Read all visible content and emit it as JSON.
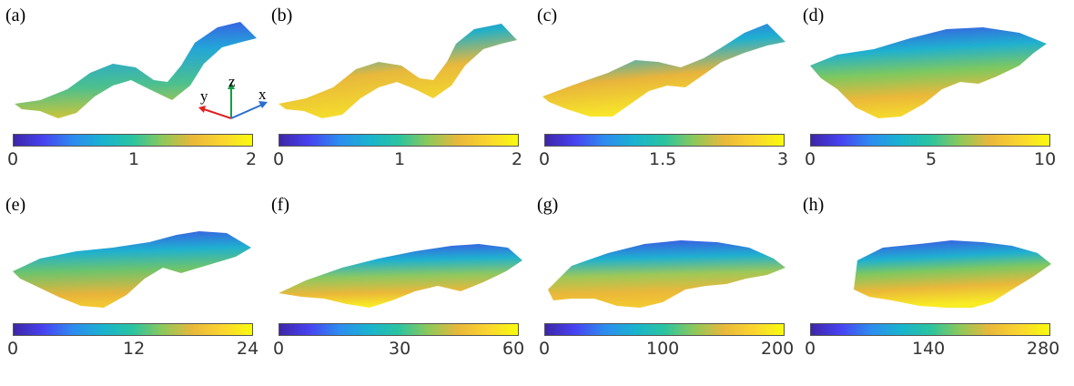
{
  "panels": [
    {
      "label": "(a)",
      "ticks": [
        "0",
        "1",
        "2"
      ]
    },
    {
      "label": "(b)",
      "ticks": [
        "0",
        "1",
        "2"
      ]
    },
    {
      "label": "(c)",
      "ticks": [
        "0",
        "1.5",
        "3"
      ]
    },
    {
      "label": "(d)",
      "ticks": [
        "0",
        "5",
        "10"
      ]
    },
    {
      "label": "(e)",
      "ticks": [
        "0",
        "12",
        "24"
      ]
    },
    {
      "label": "(f)",
      "ticks": [
        "0",
        "30",
        "60"
      ]
    },
    {
      "label": "(g)",
      "ticks": [
        "0",
        "100",
        "200"
      ]
    },
    {
      "label": "(h)",
      "ticks": [
        "0",
        "140",
        "280"
      ]
    }
  ],
  "axes": {
    "x": "x",
    "y": "y",
    "z": "z"
  },
  "colormap": "parula"
}
